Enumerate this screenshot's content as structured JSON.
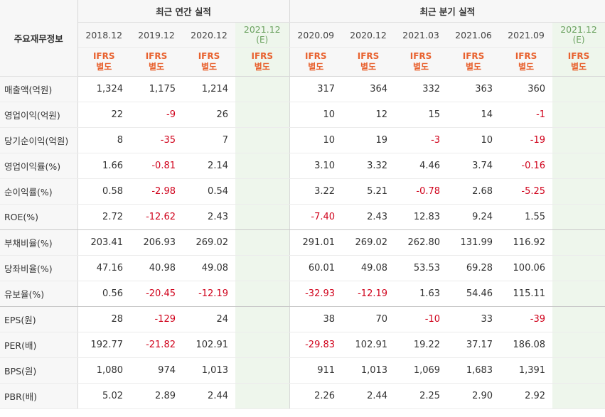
{
  "table": {
    "corner_label": "주요재무정보",
    "annual_group_label": "최근 연간 실적",
    "quarter_group_label": "최근 분기 실적",
    "annual_periods": [
      {
        "date": "2018.12",
        "est": ""
      },
      {
        "date": "2019.12",
        "est": ""
      },
      {
        "date": "2020.12",
        "est": ""
      },
      {
        "date": "2021.12",
        "est": "(E)"
      }
    ],
    "quarter_periods": [
      {
        "date": "2020.09",
        "est": ""
      },
      {
        "date": "2020.12",
        "est": ""
      },
      {
        "date": "2021.03",
        "est": ""
      },
      {
        "date": "2021.06",
        "est": ""
      },
      {
        "date": "2021.09",
        "est": ""
      },
      {
        "date": "2021.12",
        "est": "(E)"
      }
    ],
    "ifrs_label_1": "IFRS",
    "ifrs_label_2": "별도",
    "rows": [
      {
        "label": "매출액(억원)",
        "values": [
          "1,324",
          "1,175",
          "1,214",
          "",
          "317",
          "364",
          "332",
          "363",
          "360",
          ""
        ]
      },
      {
        "label": "영업이익(억원)",
        "values": [
          "22",
          "-9",
          "26",
          "",
          "10",
          "12",
          "15",
          "14",
          "-1",
          ""
        ]
      },
      {
        "label": "당기순이익(억원)",
        "values": [
          "8",
          "-35",
          "7",
          "",
          "10",
          "19",
          "-3",
          "10",
          "-19",
          ""
        ]
      },
      {
        "label": "영업이익률(%)",
        "values": [
          "1.66",
          "-0.81",
          "2.14",
          "",
          "3.10",
          "3.32",
          "4.46",
          "3.74",
          "-0.16",
          ""
        ]
      },
      {
        "label": "순이익률(%)",
        "values": [
          "0.58",
          "-2.98",
          "0.54",
          "",
          "3.22",
          "5.21",
          "-0.78",
          "2.68",
          "-5.25",
          ""
        ]
      },
      {
        "label": "ROE(%)",
        "values": [
          "2.72",
          "-12.62",
          "2.43",
          "",
          "-7.40",
          "2.43",
          "12.83",
          "9.24",
          "1.55",
          ""
        ]
      },
      {
        "label": "부채비율(%)",
        "values": [
          "203.41",
          "206.93",
          "269.02",
          "",
          "291.01",
          "269.02",
          "262.80",
          "131.99",
          "116.92",
          ""
        ]
      },
      {
        "label": "당좌비율(%)",
        "values": [
          "47.16",
          "40.98",
          "49.08",
          "",
          "60.01",
          "49.08",
          "53.53",
          "69.28",
          "100.06",
          ""
        ]
      },
      {
        "label": "유보율(%)",
        "values": [
          "0.56",
          "-20.45",
          "-12.19",
          "",
          "-32.93",
          "-12.19",
          "1.63",
          "54.46",
          "115.11",
          ""
        ]
      },
      {
        "label": "EPS(원)",
        "values": [
          "28",
          "-129",
          "24",
          "",
          "38",
          "70",
          "-10",
          "33",
          "-39",
          ""
        ]
      },
      {
        "label": "PER(배)",
        "values": [
          "192.77",
          "-21.82",
          "102.91",
          "",
          "-29.83",
          "102.91",
          "19.22",
          "37.17",
          "186.08",
          ""
        ]
      },
      {
        "label": "BPS(원)",
        "values": [
          "1,080",
          "974",
          "1,013",
          "",
          "911",
          "1,013",
          "1,069",
          "1,683",
          "1,391",
          ""
        ]
      },
      {
        "label": "PBR(배)",
        "values": [
          "5.02",
          "2.89",
          "2.44",
          "",
          "2.26",
          "2.44",
          "2.25",
          "2.90",
          "2.92",
          ""
        ]
      }
    ],
    "colors": {
      "negative": "#d0021b",
      "ifrs": "#e8612e",
      "estimate_bg": "#eef6ec"
    }
  }
}
